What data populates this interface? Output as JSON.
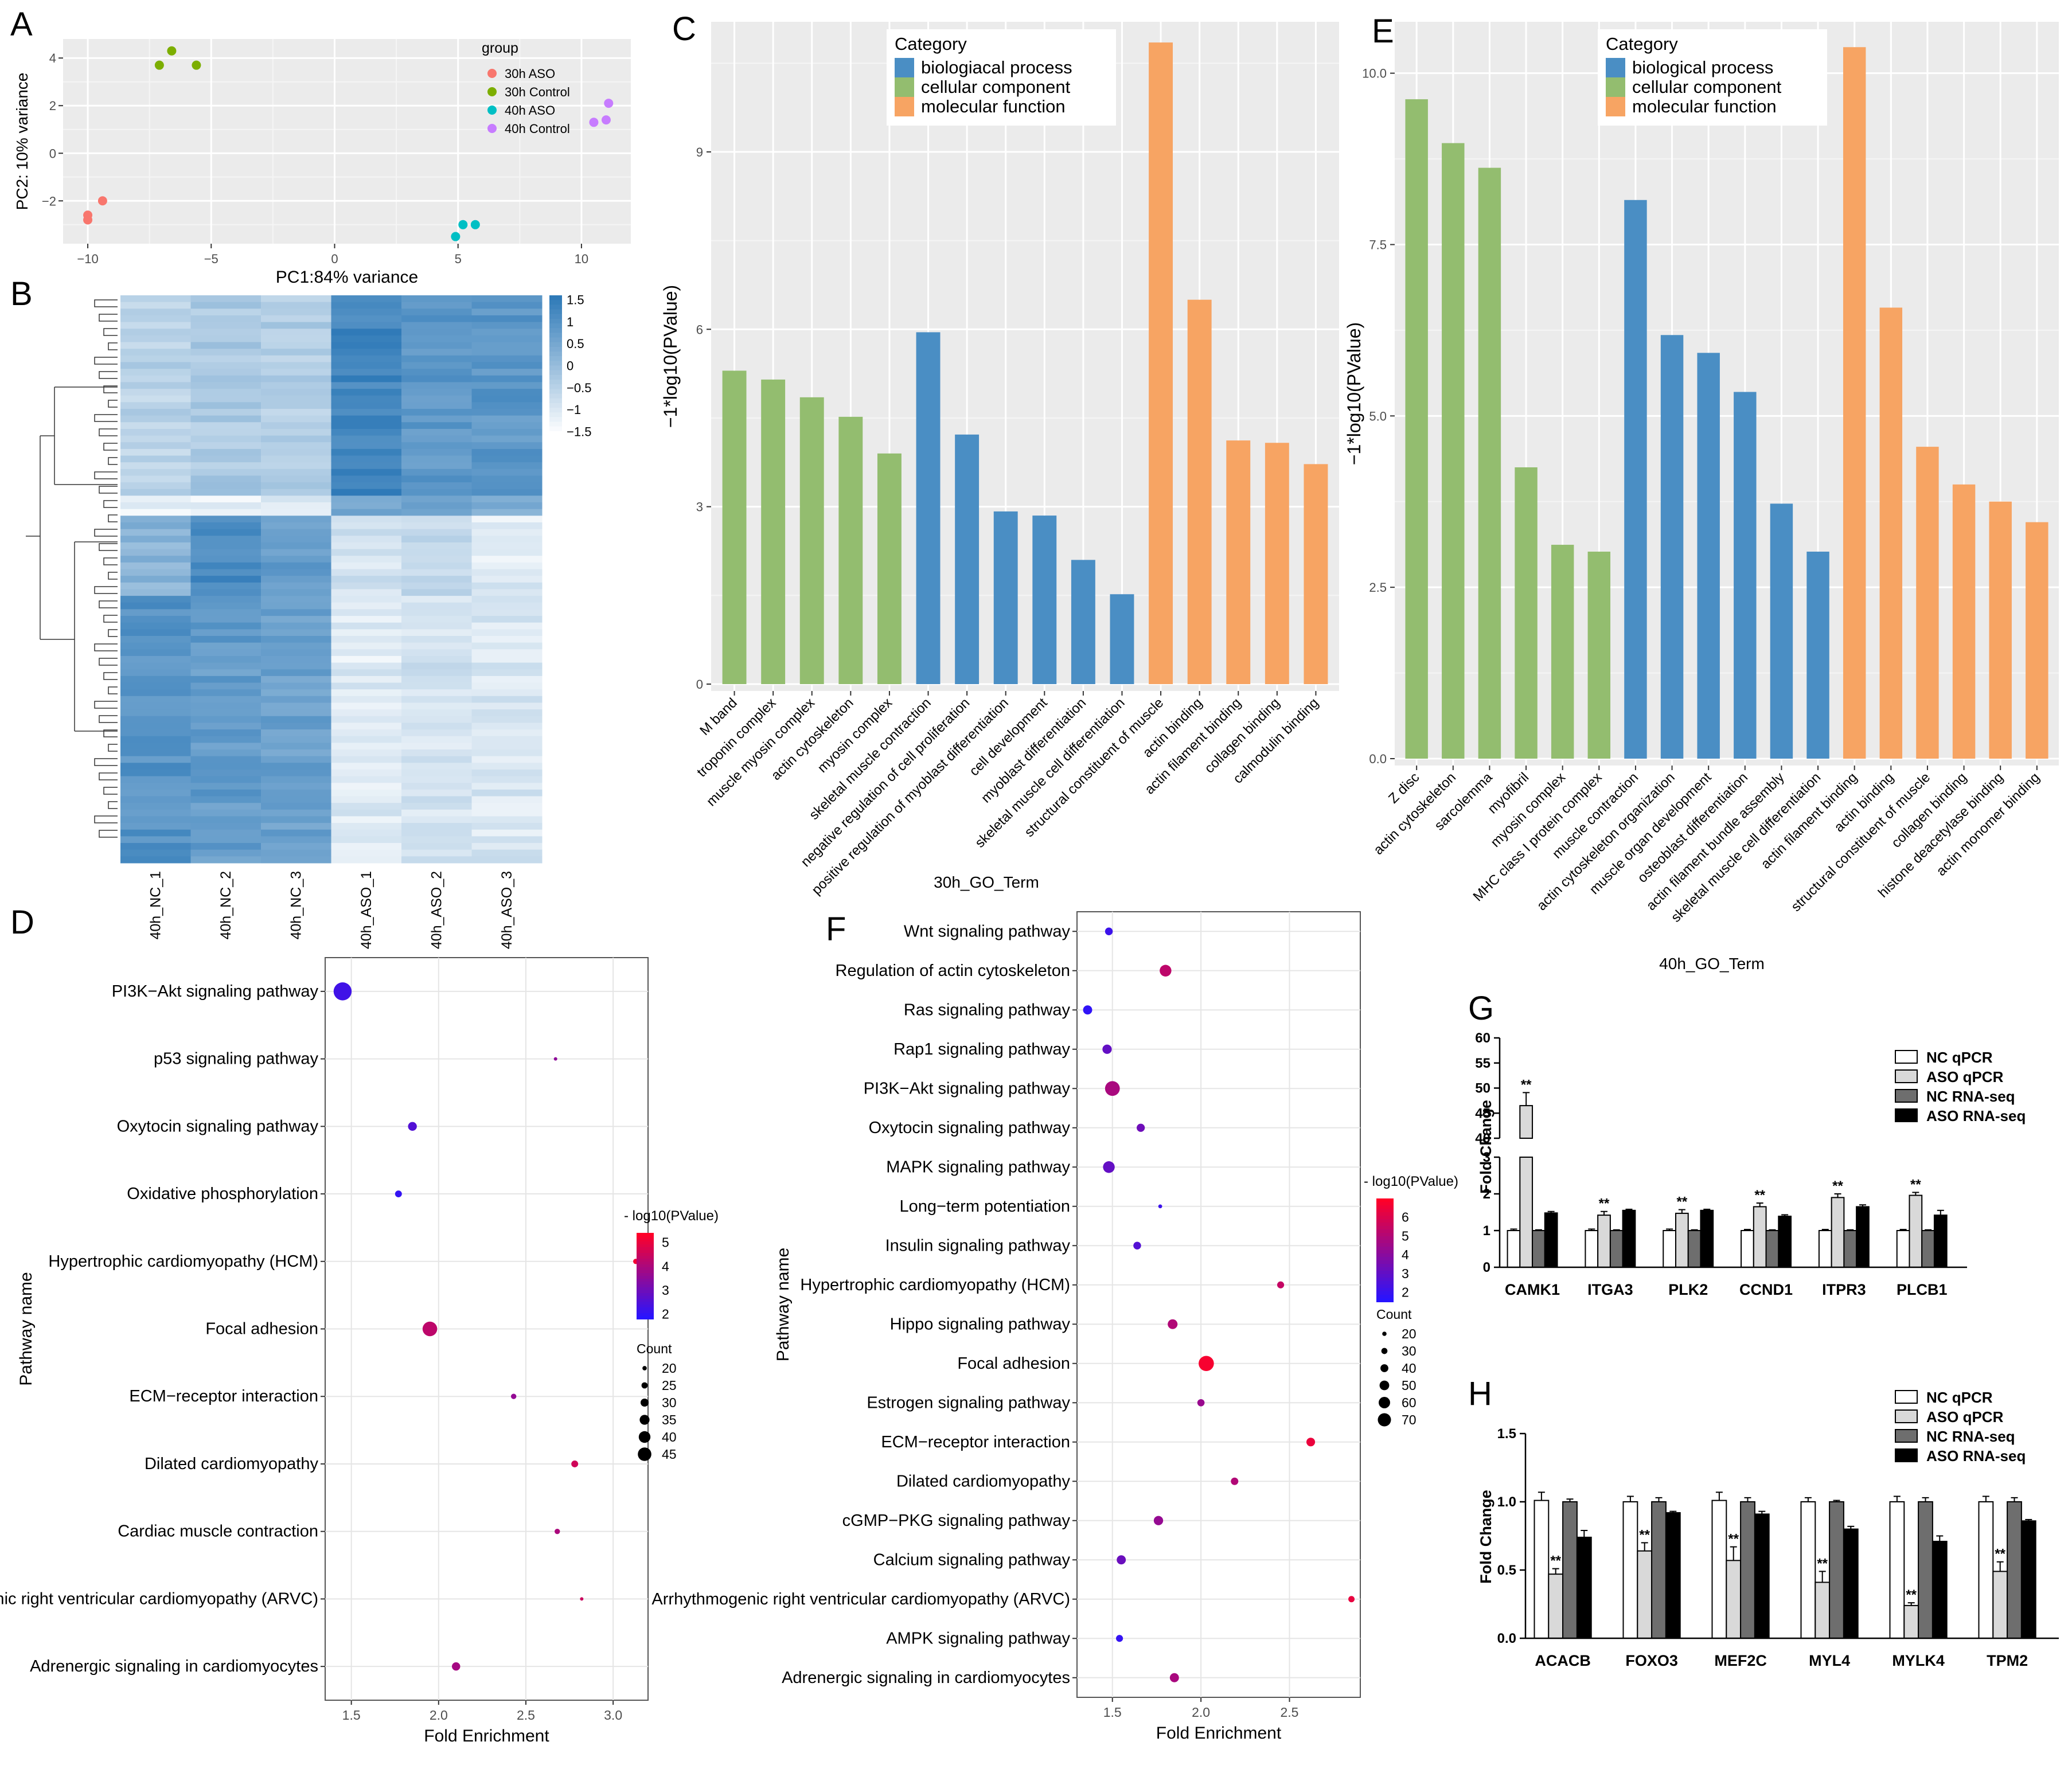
{
  "figure": {
    "panels": {
      "A": "A",
      "B": "B",
      "C": "C",
      "D": "D",
      "E": "E",
      "F": "F",
      "G": "G",
      "H": "H"
    }
  },
  "chart_data": [
    {
      "id": "A",
      "type": "scatter",
      "title": "",
      "xlabel": "PC1:84% variance",
      "ylabel": "PC2: 10% variance",
      "xlim": [
        -11,
        12
      ],
      "ylim": [
        -3.8,
        4.8
      ],
      "xticks": [
        -10,
        -5,
        0,
        5,
        10
      ],
      "xtick_labels": [
        "−10",
        "−5",
        "0",
        "5",
        "10"
      ],
      "yticks": [
        -2,
        0,
        2,
        4
      ],
      "ytick_labels": [
        "−2",
        "0",
        "2",
        "4"
      ],
      "legend_title": "group",
      "legend_position": "top-right",
      "series": [
        {
          "name": "30h ASO",
          "color": "#f8766d",
          "points": [
            [
              -10.0,
              -2.6
            ],
            [
              -10.0,
              -2.8
            ],
            [
              -9.4,
              -2.0
            ]
          ]
        },
        {
          "name": "30h Control",
          "color": "#7cae00",
          "points": [
            [
              -7.1,
              3.7
            ],
            [
              -6.6,
              4.3
            ],
            [
              -5.6,
              3.7
            ]
          ]
        },
        {
          "name": "40h ASO",
          "color": "#00bfc4",
          "points": [
            [
              4.9,
              -3.5
            ],
            [
              5.2,
              -3.0
            ],
            [
              5.7,
              -3.0
            ]
          ]
        },
        {
          "name": "40h Control",
          "color": "#c77cff",
          "points": [
            [
              10.5,
              1.3
            ],
            [
              11.0,
              1.4
            ],
            [
              11.1,
              2.1
            ]
          ]
        }
      ]
    },
    {
      "id": "B",
      "type": "heatmap",
      "columns": [
        "40h_NC_1",
        "40h_NC_2",
        "40h_NC_3",
        "40h_ASO_1",
        "40h_ASO_2",
        "40h_ASO_3"
      ],
      "colorbar_ticks": [
        "1.5",
        "1",
        "0.5",
        "0",
        "−0.5",
        "−1",
        "−1.5"
      ],
      "colorbar_values": [
        1.5,
        1,
        0.5,
        0,
        -0.5,
        -1,
        -1.5
      ],
      "color_low": "#ffffff",
      "color_high": "#2f7ab8",
      "block_profile": [
        {
          "rows": 30,
          "values": [
            -0.5,
            -0.3,
            -0.4,
            1.3,
            0.9,
            0.9
          ]
        },
        {
          "rows": 3,
          "values": [
            -1.2,
            -1.2,
            -1.2,
            0.4,
            0.5,
            0.4
          ]
        },
        {
          "rows": 12,
          "values": [
            0.2,
            1.2,
            0.8,
            -0.9,
            -0.7,
            -1.1
          ]
        },
        {
          "rows": 40,
          "values": [
            1.0,
            0.8,
            0.7,
            -1.1,
            -0.9,
            -1.0
          ]
        }
      ]
    },
    {
      "id": "C",
      "type": "bar",
      "xlabel": "30h_GO_Term",
      "ylabel": "−1*log10(PValue)",
      "ylim": [
        0,
        11.2
      ],
      "yticks": [
        0,
        3,
        6,
        9
      ],
      "ytick_labels": [
        "0",
        "3",
        "6",
        "9"
      ],
      "legend_title": "Category",
      "legend": [
        {
          "name": "biologiacal process",
          "color": "#4a8ec4"
        },
        {
          "name": "cellular component",
          "color": "#93bd6f"
        },
        {
          "name": "molecular function",
          "color": "#f7a463"
        }
      ],
      "categories": [
        "M band",
        "troponin complex",
        "muscle myosin complex",
        "actin cytoskeleton",
        "myosin complex",
        "skeletal muscle contraction",
        "negative regulation of cell proliferation",
        "positive regulation of myoblast differentiation",
        "cell development",
        "myoblast differentiation",
        "skeletal muscle cell differentiation",
        "structural constituent of muscle",
        "actin binding",
        "actin filament binding",
        "collagen binding",
        "calmodulin binding"
      ],
      "values": [
        5.3,
        5.15,
        4.85,
        4.52,
        3.9,
        5.95,
        4.22,
        2.92,
        2.85,
        2.1,
        1.52,
        10.85,
        6.5,
        4.12,
        4.08,
        3.72
      ],
      "groups": [
        1,
        1,
        1,
        1,
        1,
        0,
        0,
        0,
        0,
        0,
        0,
        2,
        2,
        2,
        2,
        2
      ]
    },
    {
      "id": "E",
      "type": "bar",
      "xlabel": "40h_GO_Term",
      "ylabel": "−1*log10(PValue)",
      "ylim": [
        0,
        10.75
      ],
      "yticks": [
        0,
        2.5,
        5,
        7.5,
        10
      ],
      "ytick_labels": [
        "0.0",
        "2.5",
        "5.0",
        "7.5",
        "10.0"
      ],
      "legend_title": "Category",
      "legend": [
        {
          "name": "biological process",
          "color": "#4a8ec4"
        },
        {
          "name": "cellular component",
          "color": "#93bd6f"
        },
        {
          "name": "molecular function",
          "color": "#f7a463"
        }
      ],
      "categories": [
        "Z disc",
        "actin cytoskeleton",
        "sarcolemma",
        "myofibril",
        "myosin complex",
        "MHC class I protein complex",
        "muscle contraction",
        "actin cytoskeleton organization",
        "muscle organ development",
        "osteoblast differentiation",
        "actin filament bundle assembly",
        "skeletal muscle cell differentiation",
        "actin filament binding",
        "actin binding",
        "structural constituent of muscle",
        "collagen binding",
        "histone deacetylase binding",
        "actin monomer binding"
      ],
      "values": [
        9.62,
        8.98,
        8.62,
        4.25,
        3.12,
        3.02,
        8.15,
        6.18,
        5.92,
        5.35,
        3.72,
        3.02,
        10.38,
        6.58,
        4.55,
        4.0,
        3.75,
        3.45
      ],
      "groups": [
        1,
        1,
        1,
        1,
        1,
        1,
        0,
        0,
        0,
        0,
        0,
        0,
        2,
        2,
        2,
        2,
        2,
        2
      ]
    },
    {
      "id": "D",
      "type": "scatter",
      "xlabel": "Fold Enrichment",
      "ylabel": "Pathway name",
      "xlim": [
        1.35,
        3.2
      ],
      "xticks": [
        1.5,
        2.0,
        2.5,
        3.0
      ],
      "xtick_labels": [
        "1.5",
        "2.0",
        "2.5",
        "3.0"
      ],
      "color_legend_title": "- log10(PValue)",
      "color_range": [
        1.8,
        5.4
      ],
      "color_ticks": [
        "5",
        "4",
        "3",
        "2"
      ],
      "color_tick_values": [
        5,
        4,
        3,
        2
      ],
      "size_legend_title": "Count",
      "size_range": [
        15,
        48
      ],
      "size_ticks": [
        "20",
        "25",
        "30",
        "35",
        "40",
        "45"
      ],
      "size_tick_values": [
        20,
        25,
        30,
        35,
        40,
        45
      ],
      "pathways": [
        "PI3K−Akt signaling pathway",
        "p53 signaling pathway",
        "Oxytocin signaling pathway",
        "Oxidative phosphorylation",
        "Hypertrophic cardiomyopathy (HCM)",
        "Focal adhesion",
        "ECM−receptor interaction",
        "Dilated cardiomyopathy",
        "Cardiac muscle contraction",
        "Arrhythmogenic right ventricular cardiomyopathy (ARVC)",
        "Adrenergic signaling in cardiomyocytes"
      ],
      "fold_enrichment": [
        1.45,
        2.67,
        1.85,
        1.77,
        3.13,
        1.95,
        2.43,
        2.78,
        2.68,
        2.82,
        2.1
      ],
      "pvalue_log10": [
        2.2,
        3.5,
        2.5,
        2.0,
        5.2,
        4.3,
        3.6,
        4.6,
        4.0,
        4.5,
        3.9
      ],
      "count": [
        45,
        15,
        26,
        22,
        19,
        38,
        19,
        22,
        19,
        15,
        25
      ]
    },
    {
      "id": "F",
      "type": "scatter",
      "xlabel": "Fold Enrichment",
      "ylabel": "Pathway name",
      "xlim": [
        1.3,
        2.9
      ],
      "xticks": [
        1.5,
        2.0,
        2.5
      ],
      "xtick_labels": [
        "1.5",
        "2.0",
        "2.5"
      ],
      "color_legend_title": "- log10(PValue)",
      "color_range": [
        1.5,
        7.0
      ],
      "color_ticks": [
        "6",
        "5",
        "4",
        "3",
        "2"
      ],
      "color_tick_values": [
        6,
        5,
        4,
        3,
        2
      ],
      "size_legend_title": "Count",
      "size_range": [
        10,
        78
      ],
      "size_ticks": [
        "20",
        "30",
        "40",
        "50",
        "60",
        "70"
      ],
      "size_tick_values": [
        20,
        30,
        40,
        50,
        60,
        70
      ],
      "pathways": [
        "Wnt signaling pathway",
        "Regulation of actin cytoskeleton",
        "Ras signaling pathway",
        "Rap1 signaling pathway",
        "PI3K−Akt signaling pathway",
        "Oxytocin signaling pathway",
        "MAPK signaling pathway",
        "Long−term potentiation",
        "Insulin signaling pathway",
        "Hypertrophic cardiomyopathy (HCM)",
        "Hippo signaling pathway",
        "Focal adhesion",
        "Estrogen signaling pathway",
        "ECM−receptor interaction",
        "Dilated cardiomyopathy",
        "cGMP−PKG signaling pathway",
        "Calcium signaling pathway",
        "Arrhythmogenic right ventricular cardiomyopathy (ARVC)",
        "AMPK signaling pathway",
        "Adrenergic signaling in cardiomyocytes"
      ],
      "fold_enrichment": [
        1.48,
        1.8,
        1.36,
        1.47,
        1.5,
        1.66,
        1.48,
        1.77,
        1.64,
        2.45,
        1.84,
        2.03,
        2.0,
        2.62,
        2.19,
        1.76,
        1.55,
        2.85,
        1.54,
        1.85
      ],
      "pvalue_log10": [
        2.0,
        5.3,
        1.7,
        3.0,
        4.8,
        3.3,
        3.0,
        2.0,
        2.6,
        5.5,
        5.0,
        6.8,
        4.4,
        6.5,
        5.0,
        4.3,
        3.2,
        6.4,
        1.8,
        4.8
      ],
      "count": [
        28,
        45,
        34,
        35,
        58,
        30,
        45,
        12,
        28,
        25,
        37,
        60,
        26,
        32,
        27,
        35,
        34,
        22,
        25,
        34
      ]
    },
    {
      "id": "G",
      "type": "bar",
      "xlabel": "",
      "ylabel": "Fold Change",
      "axis_break": true,
      "upper_ylim": [
        40,
        60
      ],
      "upper_yticks": [
        "40",
        "45",
        "50",
        "55",
        "60"
      ],
      "lower_ylim": [
        0,
        3
      ],
      "lower_yticks": [
        "0",
        "1",
        "2",
        "3"
      ],
      "legend": [
        "NC qPCR",
        "ASO qPCR",
        "NC RNA-seq",
        "ASO RNA-seq"
      ],
      "legend_colors": [
        "#ffffff",
        "#d9d9d9",
        "#6e6e6e",
        "#000000"
      ],
      "categories": [
        "CAMK1",
        "ITGA3",
        "PLK2",
        "CCND1",
        "ITPR3",
        "PLCB1"
      ],
      "series": [
        {
          "name": "NC qPCR",
          "values": [
            1.0,
            1.0,
            1.0,
            1.0,
            1.0,
            1.0
          ],
          "errors": [
            0.04,
            0.04,
            0.04,
            0.03,
            0.03,
            0.03
          ]
        },
        {
          "name": "ASO qPCR",
          "values": [
            46.5,
            1.42,
            1.47,
            1.65,
            1.9,
            1.96
          ],
          "errors": [
            2.6,
            0.1,
            0.1,
            0.1,
            0.1,
            0.08
          ]
        },
        {
          "name": "NC RNA-seq",
          "values": [
            1.0,
            1.0,
            1.0,
            1.0,
            1.0,
            1.0
          ],
          "errors": [
            0.02,
            0.02,
            0.02,
            0.02,
            0.02,
            0.02
          ]
        },
        {
          "name": "ASO RNA-seq",
          "values": [
            1.48,
            1.55,
            1.55,
            1.39,
            1.65,
            1.42
          ],
          "errors": [
            0.04,
            0.03,
            0.03,
            0.04,
            0.05,
            0.13
          ]
        }
      ],
      "significance": [
        "**",
        "**",
        "**",
        "**",
        "**",
        "**"
      ]
    },
    {
      "id": "H",
      "type": "bar",
      "xlabel": "",
      "ylabel": "Fold Change",
      "ylim": [
        0,
        1.5
      ],
      "yticks": [
        "0.0",
        "0.5",
        "1.0",
        "1.5"
      ],
      "ytick_values": [
        0,
        0.5,
        1.0,
        1.5
      ],
      "legend": [
        "NC qPCR",
        "ASO qPCR",
        "NC RNA-seq",
        "ASO RNA-seq"
      ],
      "legend_colors": [
        "#ffffff",
        "#d9d9d9",
        "#6e6e6e",
        "#000000"
      ],
      "categories": [
        "ACACB",
        "FOXO3",
        "MEF2C",
        "MYL4",
        "MYLK4",
        "TPM2"
      ],
      "series": [
        {
          "name": "NC qPCR",
          "values": [
            1.01,
            1.0,
            1.01,
            1.0,
            1.0,
            1.0
          ],
          "errors": [
            0.06,
            0.04,
            0.06,
            0.03,
            0.04,
            0.04
          ]
        },
        {
          "name": "ASO qPCR",
          "values": [
            0.47,
            0.64,
            0.57,
            0.41,
            0.24,
            0.49
          ],
          "errors": [
            0.04,
            0.06,
            0.1,
            0.08,
            0.02,
            0.07
          ]
        },
        {
          "name": "NC RNA-seq",
          "values": [
            1.0,
            1.0,
            1.0,
            1.0,
            1.0,
            1.0
          ],
          "errors": [
            0.02,
            0.03,
            0.03,
            0.01,
            0.03,
            0.03
          ]
        },
        {
          "name": "ASO RNA-seq",
          "values": [
            0.74,
            0.92,
            0.91,
            0.8,
            0.71,
            0.86
          ],
          "errors": [
            0.05,
            0.01,
            0.02,
            0.02,
            0.04,
            0.01
          ]
        }
      ],
      "significance": [
        "**",
        "**",
        "**",
        "**",
        "**",
        "**"
      ]
    }
  ]
}
